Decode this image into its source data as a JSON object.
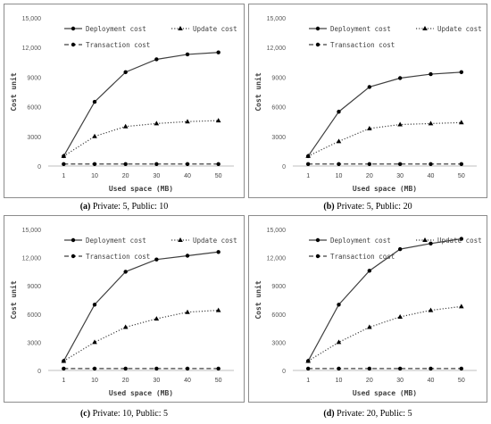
{
  "chart_data": [
    {
      "type": "line",
      "caption_label": "(a)",
      "caption_text": "Private: 5, Public: 10",
      "xlabel": "Used space (MB)",
      "ylabel": "Cost unit",
      "categories": [
        "1",
        "10",
        "20",
        "30",
        "40",
        "50"
      ],
      "yticks": [
        "0",
        "3000",
        "6000",
        "9000",
        "12,000",
        "15,000"
      ],
      "ylim": [
        0,
        15000
      ],
      "series": [
        {
          "name": "Deployment cost",
          "style": "solid",
          "marker": "circle",
          "values": [
            1000,
            6500,
            9500,
            10800,
            11300,
            11500
          ]
        },
        {
          "name": "Update cost",
          "style": "dotted",
          "marker": "triangle",
          "values": [
            1000,
            3000,
            4000,
            4300,
            4500,
            4600
          ]
        },
        {
          "name": "Transaction cost",
          "style": "dashed",
          "marker": "circle",
          "values": [
            200,
            200,
            200,
            200,
            200,
            200
          ]
        }
      ]
    },
    {
      "type": "line",
      "caption_label": "(b)",
      "caption_text": "Private: 5, Public: 20",
      "xlabel": "Used space (MB)",
      "ylabel": "Cost unit",
      "categories": [
        "1",
        "10",
        "20",
        "30",
        "40",
        "50"
      ],
      "yticks": [
        "0",
        "3000",
        "6000",
        "9000",
        "12,000",
        "15,000"
      ],
      "ylim": [
        0,
        15000
      ],
      "series": [
        {
          "name": "Deployment cost",
          "style": "solid",
          "marker": "circle",
          "values": [
            1000,
            5500,
            8000,
            8900,
            9300,
            9500
          ]
        },
        {
          "name": "Update cost",
          "style": "dotted",
          "marker": "triangle",
          "values": [
            1000,
            2500,
            3800,
            4200,
            4300,
            4400
          ]
        },
        {
          "name": "Transaction cost",
          "style": "dashed",
          "marker": "circle",
          "values": [
            200,
            200,
            200,
            200,
            200,
            200
          ]
        }
      ]
    },
    {
      "type": "line",
      "caption_label": "(c)",
      "caption_text": "Private: 10, Public: 5",
      "xlabel": "Used space (MB)",
      "ylabel": "Cost unit",
      "categories": [
        "1",
        "10",
        "20",
        "30",
        "40",
        "50"
      ],
      "yticks": [
        "0",
        "3000",
        "6000",
        "9000",
        "12,000",
        "15,000"
      ],
      "ylim": [
        0,
        15000
      ],
      "series": [
        {
          "name": "Deployment cost",
          "style": "solid",
          "marker": "circle",
          "values": [
            1000,
            7000,
            10500,
            11800,
            12200,
            12600
          ]
        },
        {
          "name": "Update cost",
          "style": "dotted",
          "marker": "triangle",
          "values": [
            1000,
            3000,
            4600,
            5500,
            6200,
            6400
          ]
        },
        {
          "name": "Transaction cost",
          "style": "dashed",
          "marker": "circle",
          "values": [
            200,
            200,
            200,
            200,
            200,
            200
          ]
        }
      ]
    },
    {
      "type": "line",
      "caption_label": "(d)",
      "caption_text": "Private: 20, Public: 5",
      "xlabel": "Used space (MB)",
      "ylabel": "Cost unit",
      "categories": [
        "1",
        "10",
        "20",
        "30",
        "40",
        "50"
      ],
      "yticks": [
        "0",
        "3000",
        "6000",
        "9000",
        "12,000",
        "15,000"
      ],
      "ylim": [
        0,
        15000
      ],
      "series": [
        {
          "name": "Deployment cost",
          "style": "solid",
          "marker": "circle",
          "values": [
            1000,
            7000,
            10600,
            12900,
            13500,
            14000
          ]
        },
        {
          "name": "Update cost",
          "style": "dotted",
          "marker": "triangle",
          "values": [
            1000,
            3000,
            4600,
            5700,
            6400,
            6800
          ]
        },
        {
          "name": "Transaction cost",
          "style": "dashed",
          "marker": "circle",
          "values": [
            200,
            200,
            200,
            200,
            200,
            200
          ]
        }
      ]
    }
  ]
}
